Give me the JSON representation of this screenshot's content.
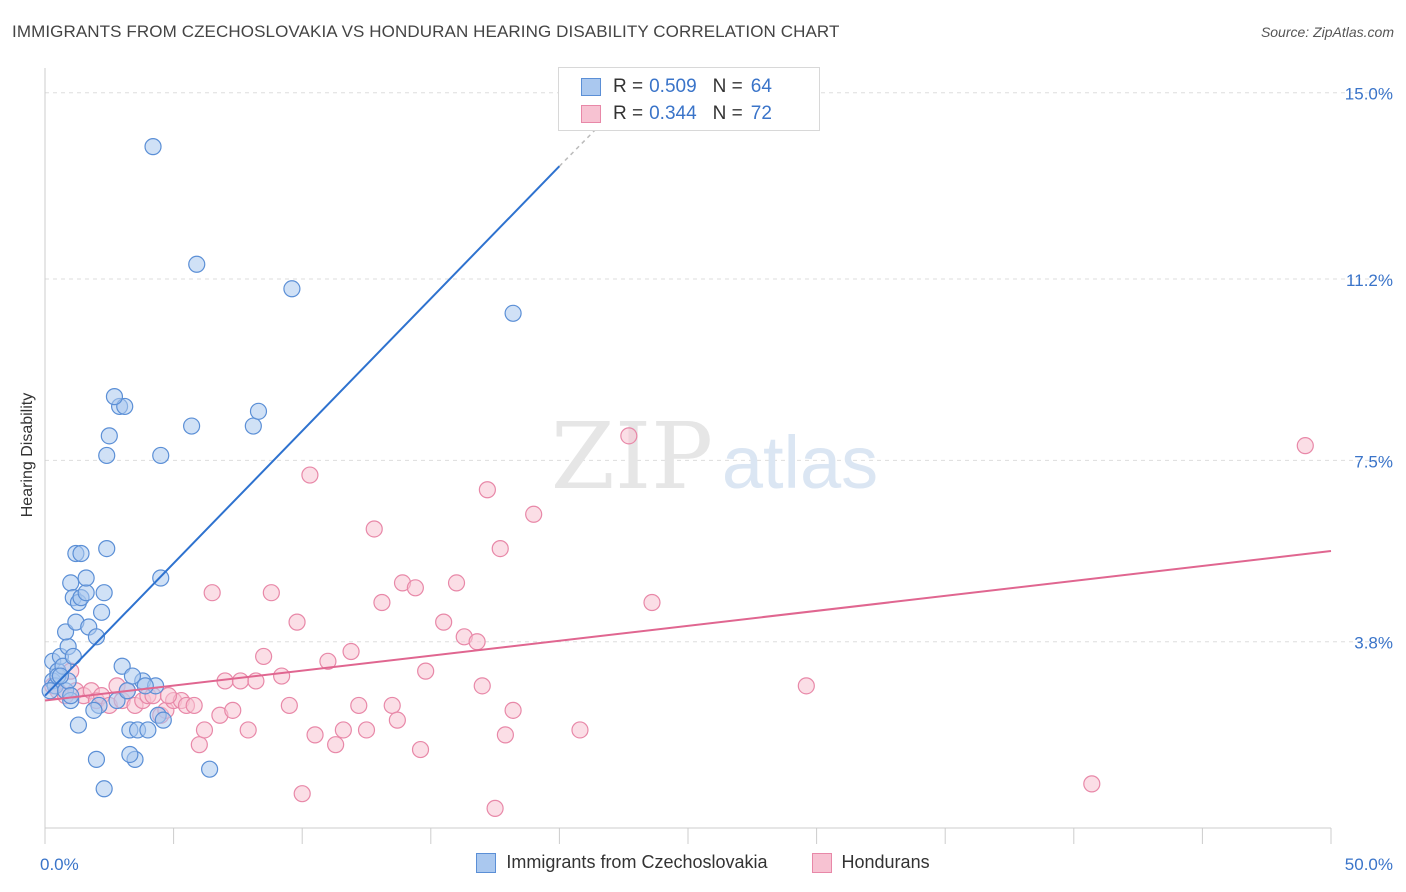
{
  "title": "IMMIGRANTS FROM CZECHOSLOVAKIA VS HONDURAN HEARING DISABILITY CORRELATION CHART",
  "source": "Source: ZipAtlas.com",
  "watermark": {
    "zip": "ZIP",
    "atlas": "atlas"
  },
  "legend": {
    "rows": [
      {
        "r_label": "R =",
        "r_value": "0.509",
        "n_label": "N =",
        "n_value": "64"
      },
      {
        "r_label": "R =",
        "r_value": "0.344",
        "n_label": "N =",
        "n_value": "72"
      }
    ]
  },
  "colors": {
    "blue_fill": "#aac8ef",
    "blue_stroke": "#5b8fd6",
    "blue_line": "#2e72cf",
    "pink_fill": "#f7c2d2",
    "pink_stroke": "#e888a8",
    "pink_line": "#e06690",
    "tick_label": "#3a74c9",
    "grid": "#dddddd"
  },
  "chart_data": {
    "type": "scatter",
    "title": "IMMIGRANTS FROM CZECHOSLOVAKIA VS HONDURAN HEARING DISABILITY CORRELATION CHART",
    "xlabel": "",
    "ylabel": "Hearing Disability",
    "xlim": [
      0,
      50
    ],
    "ylim": [
      0,
      15.3
    ],
    "x_ticks": [
      {
        "value": 0,
        "label": "0.0%"
      },
      {
        "value": 50,
        "label": "50.0%"
      }
    ],
    "y_ticks": [
      {
        "value": 3.8,
        "label": "3.8%"
      },
      {
        "value": 7.5,
        "label": "7.5%"
      },
      {
        "value": 11.2,
        "label": "11.2%"
      },
      {
        "value": 15.0,
        "label": "15.0%"
      }
    ],
    "grid": true,
    "legend_position": "top-center",
    "series": [
      {
        "name": "Immigrants from Czechoslovakia",
        "color": "#5b8fd6",
        "trend": {
          "x": [
            0,
            20
          ],
          "y": [
            2.7,
            13.5
          ],
          "dashed_to": [
            21.5,
            14.3
          ]
        },
        "points": [
          [
            0.3,
            3.4
          ],
          [
            0.5,
            3.2
          ],
          [
            0.3,
            3.0
          ],
          [
            0.4,
            2.9
          ],
          [
            0.2,
            2.8
          ],
          [
            0.6,
            3.5
          ],
          [
            0.8,
            2.8
          ],
          [
            0.9,
            3.0
          ],
          [
            0.5,
            3.1
          ],
          [
            0.7,
            3.3
          ],
          [
            0.9,
            3.7
          ],
          [
            1.0,
            2.6
          ],
          [
            1.1,
            3.5
          ],
          [
            0.8,
            4.0
          ],
          [
            1.2,
            4.2
          ],
          [
            1.0,
            5.0
          ],
          [
            1.1,
            4.7
          ],
          [
            1.3,
            4.6
          ],
          [
            1.4,
            4.7
          ],
          [
            1.6,
            4.8
          ],
          [
            1.7,
            4.1
          ],
          [
            1.6,
            5.1
          ],
          [
            2.0,
            3.9
          ],
          [
            2.1,
            2.5
          ],
          [
            2.2,
            4.4
          ],
          [
            2.3,
            4.8
          ],
          [
            1.2,
            5.6
          ],
          [
            1.4,
            5.6
          ],
          [
            2.4,
            5.7
          ],
          [
            2.4,
            7.6
          ],
          [
            2.5,
            8.0
          ],
          [
            2.9,
            8.6
          ],
          [
            3.1,
            8.6
          ],
          [
            2.7,
            8.8
          ],
          [
            2.8,
            2.6
          ],
          [
            3.0,
            3.3
          ],
          [
            3.2,
            2.8
          ],
          [
            3.3,
            2.0
          ],
          [
            3.5,
            1.4
          ],
          [
            3.6,
            2.0
          ],
          [
            3.3,
            1.5
          ],
          [
            3.8,
            3.0
          ],
          [
            3.4,
            3.1
          ],
          [
            4.0,
            2.0
          ],
          [
            4.3,
            2.9
          ],
          [
            4.5,
            5.1
          ],
          [
            4.5,
            7.6
          ],
          [
            4.4,
            2.3
          ],
          [
            4.2,
            13.9
          ],
          [
            5.9,
            11.5
          ],
          [
            5.7,
            8.2
          ],
          [
            6.4,
            1.2
          ],
          [
            8.1,
            8.2
          ],
          [
            8.3,
            8.5
          ],
          [
            9.6,
            11.0
          ],
          [
            18.2,
            10.5
          ],
          [
            1.3,
            2.1
          ],
          [
            1.0,
            2.7
          ],
          [
            1.9,
            2.4
          ],
          [
            2.0,
            1.4
          ],
          [
            2.3,
            0.8
          ],
          [
            3.9,
            2.9
          ],
          [
            4.6,
            2.2
          ],
          [
            0.6,
            3.1
          ]
        ]
      },
      {
        "name": "Hondurans",
        "color": "#e888a8",
        "trend": {
          "x": [
            0,
            50
          ],
          "y": [
            2.6,
            5.65
          ]
        },
        "points": [
          [
            0.3,
            2.9
          ],
          [
            0.5,
            2.8
          ],
          [
            0.8,
            2.7
          ],
          [
            1.0,
            3.2
          ],
          [
            1.2,
            2.8
          ],
          [
            1.5,
            2.7
          ],
          [
            1.8,
            2.8
          ],
          [
            2.0,
            2.6
          ],
          [
            2.2,
            2.7
          ],
          [
            2.5,
            2.5
          ],
          [
            2.8,
            2.9
          ],
          [
            3.0,
            2.6
          ],
          [
            3.2,
            2.8
          ],
          [
            3.5,
            2.5
          ],
          [
            3.8,
            2.6
          ],
          [
            4.0,
            2.7
          ],
          [
            4.2,
            2.7
          ],
          [
            4.5,
            2.3
          ],
          [
            4.7,
            2.4
          ],
          [
            5.0,
            2.6
          ],
          [
            5.3,
            2.6
          ],
          [
            5.5,
            2.5
          ],
          [
            5.8,
            2.5
          ],
          [
            6.0,
            1.7
          ],
          [
            6.2,
            2.0
          ],
          [
            6.5,
            4.8
          ],
          [
            6.8,
            2.3
          ],
          [
            7.0,
            3.0
          ],
          [
            7.3,
            2.4
          ],
          [
            7.6,
            3.0
          ],
          [
            7.9,
            2.0
          ],
          [
            8.2,
            3.0
          ],
          [
            8.5,
            3.5
          ],
          [
            8.8,
            4.8
          ],
          [
            9.2,
            3.1
          ],
          [
            9.5,
            2.5
          ],
          [
            9.8,
            4.2
          ],
          [
            10.0,
            0.7
          ],
          [
            10.3,
            7.2
          ],
          [
            10.5,
            1.9
          ],
          [
            11.0,
            3.4
          ],
          [
            11.3,
            1.7
          ],
          [
            11.6,
            2.0
          ],
          [
            11.9,
            3.6
          ],
          [
            12.2,
            2.5
          ],
          [
            12.5,
            2.0
          ],
          [
            12.8,
            6.1
          ],
          [
            13.1,
            4.6
          ],
          [
            13.5,
            2.5
          ],
          [
            13.7,
            2.2
          ],
          [
            13.9,
            5.0
          ],
          [
            14.4,
            4.9
          ],
          [
            14.6,
            1.6
          ],
          [
            14.8,
            3.2
          ],
          [
            15.5,
            4.2
          ],
          [
            16.0,
            5.0
          ],
          [
            16.3,
            3.9
          ],
          [
            16.8,
            3.8
          ],
          [
            17.0,
            2.9
          ],
          [
            17.5,
            0.4
          ],
          [
            17.9,
            1.9
          ],
          [
            18.2,
            2.4
          ],
          [
            19.0,
            6.4
          ],
          [
            20.8,
            2.0
          ],
          [
            22.7,
            8.0
          ],
          [
            23.6,
            4.6
          ],
          [
            29.6,
            2.9
          ],
          [
            40.7,
            0.9
          ],
          [
            49.0,
            7.8
          ],
          [
            17.2,
            6.9
          ],
          [
            17.7,
            5.7
          ],
          [
            4.8,
            2.7
          ]
        ]
      }
    ]
  },
  "bottom_legend": [
    {
      "label": "Immigrants from Czechoslovakia"
    },
    {
      "label": "Hondurans"
    }
  ]
}
